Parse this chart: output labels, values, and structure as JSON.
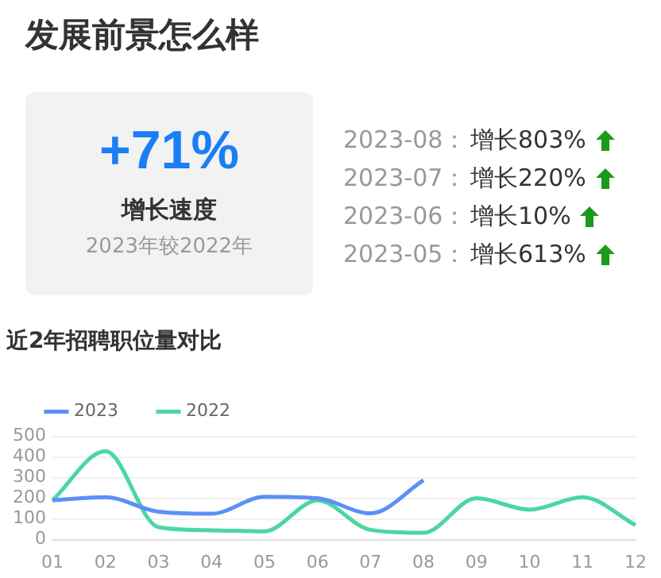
{
  "chart_data": {
    "type": "line",
    "title": "近2年招聘职位量对比",
    "categories": [
      "01",
      "02",
      "03",
      "04",
      "05",
      "06",
      "07",
      "08",
      "09",
      "10",
      "11",
      "12"
    ],
    "series": [
      {
        "name": "2023",
        "color": "#5b8ff9",
        "values": [
          190,
          205,
          135,
          125,
          207,
          200,
          127,
          287,
          null,
          null,
          null,
          null
        ]
      },
      {
        "name": "2022",
        "color": "#4cd6a0",
        "values": [
          190,
          428,
          60,
          45,
          40,
          190,
          47,
          33,
          200,
          145,
          205,
          70
        ]
      }
    ],
    "ylim": [
      0,
      500
    ],
    "yticks": [
      0,
      100,
      200,
      300,
      400,
      500
    ],
    "grid": "y",
    "legend": "top left",
    "marker": "none",
    "annotations": [
      "发展前景怎么样",
      "+71%",
      "增长速度",
      "2023年较2022年",
      "2023-08：",
      "增长803%",
      "2023-07：",
      "增长220%",
      "2023-06：",
      "增长10%",
      "2023-05：",
      "增长613%"
    ]
  }
}
